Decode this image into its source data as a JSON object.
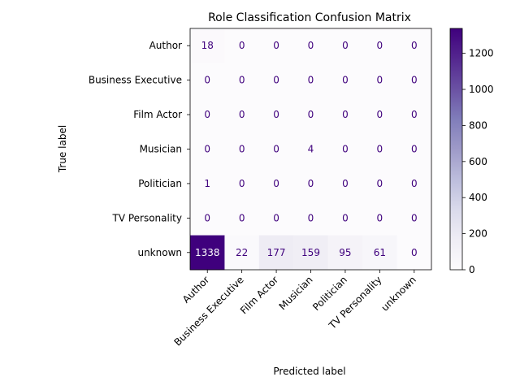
{
  "chart_data": {
    "type": "heatmap",
    "title": "Role Classification Confusion Matrix",
    "xlabel": "Predicted label",
    "ylabel": "True label",
    "row_labels": [
      "Author",
      "Business Executive",
      "Film Actor",
      "Musician",
      "Politician",
      "TV Personality",
      "unknown"
    ],
    "col_labels": [
      "Author",
      "Business Executive",
      "Film Actor",
      "Musician",
      "Politician",
      "TV Personality",
      "unknown"
    ],
    "matrix": [
      [
        18,
        0,
        0,
        0,
        0,
        0,
        0
      ],
      [
        0,
        0,
        0,
        0,
        0,
        0,
        0
      ],
      [
        0,
        0,
        0,
        0,
        0,
        0,
        0
      ],
      [
        0,
        0,
        0,
        4,
        0,
        0,
        0
      ],
      [
        1,
        0,
        0,
        0,
        0,
        0,
        0
      ],
      [
        0,
        0,
        0,
        0,
        0,
        0,
        0
      ],
      [
        1338,
        22,
        177,
        159,
        95,
        61,
        0
      ]
    ],
    "colormap": "Purples",
    "colorbar": {
      "range": [
        0,
        1338
      ],
      "ticks": [
        0,
        200,
        400,
        600,
        800,
        1000,
        1200
      ]
    },
    "grid": false
  }
}
